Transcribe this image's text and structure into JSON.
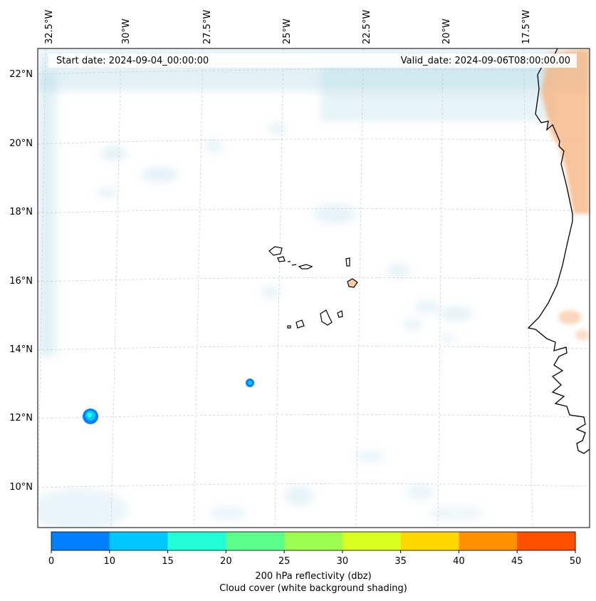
{
  "header": {
    "start_date": "Start date: 2024-09-04_00:00:00",
    "valid_date": "Valid_date: 2024-09-06T08:00:00.00"
  },
  "axes": {
    "lon_labels": [
      "32.5°W",
      "30°W",
      "27.5°W",
      "25°W",
      "22.5°W",
      "20°W",
      "17.5°W"
    ],
    "lat_labels": [
      "22°N",
      "20°N",
      "18°N",
      "16°N",
      "14°N",
      "12°N",
      "10°N"
    ]
  },
  "colorbar": {
    "ticks": [
      "0",
      "10",
      "15",
      "20",
      "25",
      "30",
      "35",
      "40",
      "45",
      "50"
    ],
    "colors": [
      "#0080ff",
      "#00c8ff",
      "#22ffd8",
      "#5cff8c",
      "#9cff50",
      "#d8ff20",
      "#ffd800",
      "#ff9000",
      "#ff5000"
    ],
    "label_line1": "200 hPa reflectivity (dbz)",
    "label_line2": "Cloud cover (white background shading)"
  },
  "colors": {
    "cloud": "#add8e6",
    "warm_shading": "#f5b07a",
    "coastline": "#000000",
    "gridline": "#c8c8c8"
  }
}
